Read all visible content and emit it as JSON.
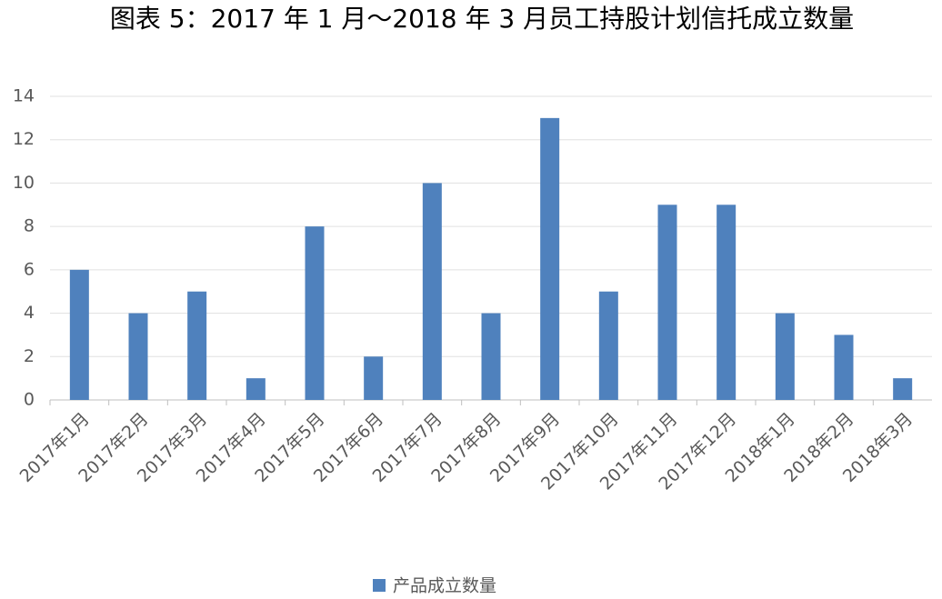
{
  "chart_data": {
    "type": "bar",
    "title": "图表 5：2017 年 1 月～2018 年 3 月员工持股计划信托成立数量",
    "categories": [
      "2017年1月",
      "2017年2月",
      "2017年3月",
      "2017年4月",
      "2017年5月",
      "2017年6月",
      "2017年7月",
      "2017年8月",
      "2017年9月",
      "2017年10月",
      "2017年11月",
      "2017年12月",
      "2018年1月",
      "2018年2月",
      "2018年3月"
    ],
    "series": [
      {
        "name": "产品成立数量",
        "color": "#4f81bd",
        "values": [
          6,
          4,
          5,
          1,
          8,
          2,
          10,
          4,
          13,
          5,
          9,
          9,
          4,
          3,
          1
        ]
      }
    ],
    "ylim": [
      0,
      14
    ],
    "yticks": [
      0,
      2,
      4,
      6,
      8,
      10,
      12,
      14
    ],
    "grid": true,
    "legend": "bottom"
  }
}
